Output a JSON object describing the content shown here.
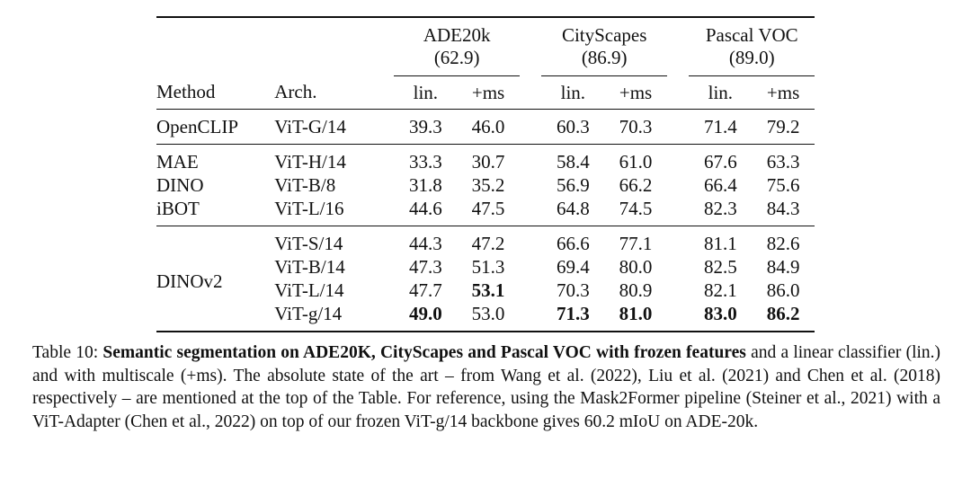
{
  "table": {
    "groups": [
      {
        "name": "ADE20k",
        "sota": "(62.9)"
      },
      {
        "name": "CityScapes",
        "sota": "(86.9)"
      },
      {
        "name": "Pascal VOC",
        "sota": "(89.0)"
      }
    ],
    "columns": {
      "method": "Method",
      "arch": "Arch.",
      "lin": "lin.",
      "ms": "+ms"
    },
    "rows": [
      {
        "method": "OpenCLIP",
        "arch": "ViT-G/14",
        "values": [
          "39.3",
          "46.0",
          "60.3",
          "70.3",
          "71.4",
          "79.2"
        ]
      },
      {
        "method": "MAE",
        "arch": "ViT-H/14",
        "values": [
          "33.3",
          "30.7",
          "58.4",
          "61.0",
          "67.6",
          "63.3"
        ]
      },
      {
        "method": "DINO",
        "arch": "ViT-B/8",
        "values": [
          "31.8",
          "35.2",
          "56.9",
          "66.2",
          "66.4",
          "75.6"
        ]
      },
      {
        "method": "iBOT",
        "arch": "ViT-L/16",
        "values": [
          "44.6",
          "47.5",
          "64.8",
          "74.5",
          "82.3",
          "84.3"
        ]
      },
      {
        "method": "DINOv2",
        "arch": "ViT-S/14",
        "values": [
          "44.3",
          "47.2",
          "66.6",
          "77.1",
          "81.1",
          "82.6"
        ]
      },
      {
        "method": "",
        "arch": "ViT-B/14",
        "values": [
          "47.3",
          "51.3",
          "69.4",
          "80.0",
          "82.5",
          "84.9"
        ]
      },
      {
        "method": "",
        "arch": "ViT-L/14",
        "values": [
          "47.7",
          "53.1",
          "70.3",
          "80.9",
          "82.1",
          "86.0"
        ]
      },
      {
        "method": "",
        "arch": "ViT-g/14",
        "values": [
          "49.0",
          "53.0",
          "71.3",
          "81.0",
          "83.0",
          "86.2"
        ]
      }
    ]
  },
  "caption": {
    "label": "Table 10:",
    "bold": "Semantic segmentation on ADE20K, CityScapes and Pascal VOC with frozen features",
    "text": "and a linear classifier (lin.) and with multiscale (+ms). The absolute state of the art – from Wang et al. (2022), Liu et al. (2021) and Chen et al. (2018) respectively – are mentioned at the top of the Table. For reference, using the Mask2Former pipeline (Steiner et al., 2021) with a ViT-Adapter (Chen et al., 2022) on top of our frozen ViT-g/14 backbone gives 60.2 mIoU on ADE-20k."
  }
}
